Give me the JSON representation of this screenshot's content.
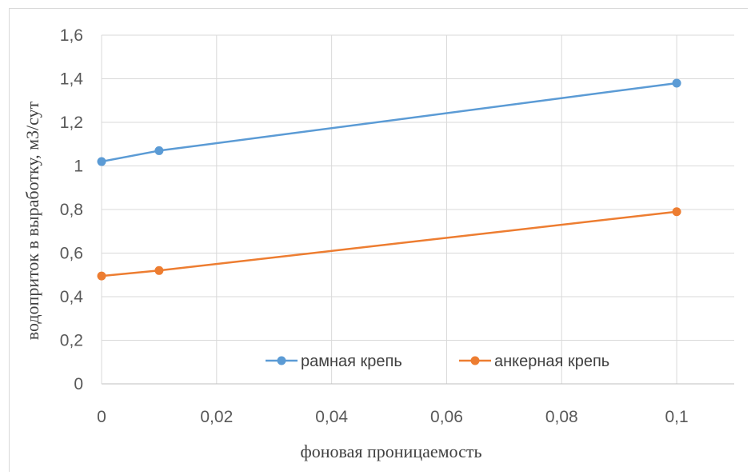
{
  "chart_data": {
    "type": "line",
    "title": "",
    "xlabel": "фоновая проницаемость",
    "ylabel": "водоприток в выработку, м3/сут",
    "xlim": [
      0,
      0.11
    ],
    "ylim": [
      0,
      1.6
    ],
    "x_ticks": [
      {
        "value": 0,
        "label": "0"
      },
      {
        "value": 0.02,
        "label": "0,02"
      },
      {
        "value": 0.04,
        "label": "0,04"
      },
      {
        "value": 0.06,
        "label": "0,06"
      },
      {
        "value": 0.08,
        "label": "0,08"
      },
      {
        "value": 0.1,
        "label": "0,1"
      }
    ],
    "y_ticks": [
      {
        "value": 0,
        "label": "0"
      },
      {
        "value": 0.2,
        "label": "0,2"
      },
      {
        "value": 0.4,
        "label": "0,4"
      },
      {
        "value": 0.6,
        "label": "0,6"
      },
      {
        "value": 0.8,
        "label": "0,8"
      },
      {
        "value": 1.0,
        "label": "1"
      },
      {
        "value": 1.2,
        "label": "1,2"
      },
      {
        "value": 1.4,
        "label": "1,4"
      },
      {
        "value": 1.6,
        "label": "1,6"
      }
    ],
    "grid": true,
    "legend_position": "bottom-right",
    "series": [
      {
        "name": "рамная крепь",
        "color": "#5b9bd5",
        "x": [
          0,
          0.01,
          0.1
        ],
        "y": [
          1.02,
          1.07,
          1.38
        ]
      },
      {
        "name": "анкерная крепь",
        "color": "#ed7d31",
        "x": [
          0,
          0.01,
          0.1
        ],
        "y": [
          0.495,
          0.52,
          0.79
        ]
      }
    ]
  }
}
